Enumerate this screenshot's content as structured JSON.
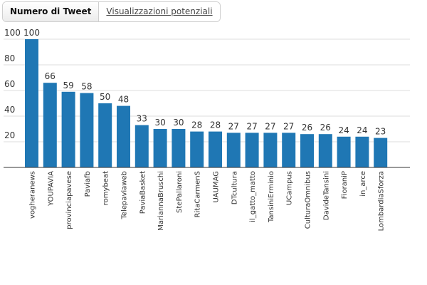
{
  "tabs": [
    {
      "label": "Numero di Tweet",
      "active": true
    },
    {
      "label": "Visualizzazioni potenziali",
      "active": false
    }
  ],
  "colors": {
    "bar": "#1f77b4",
    "grid": "#dddddd",
    "axis": "#333333"
  },
  "chart_data": {
    "type": "bar",
    "title": "",
    "xlabel": "",
    "ylabel": "",
    "ylim": [
      0,
      100
    ],
    "yticks": [
      20,
      40,
      60,
      80,
      100
    ],
    "grid": true,
    "categories": [
      "vogheranews",
      "YOUPAVIA",
      "provinciapavese",
      "Paviafb",
      "romybeat",
      "Telepaviaweb",
      "PaviaBasket",
      "MariannaBruschi",
      "StePallaroni",
      "RitaCarmenS",
      "UAUMAG",
      "DTcultura",
      "il_gatto_matto",
      "TansiniErminio",
      "UCampus",
      "CulturaOmnibus",
      "DavideTansini",
      "FioraniP",
      "in_arce",
      "LombardiaSforza"
    ],
    "values": [
      100,
      66,
      59,
      58,
      50,
      48,
      33,
      30,
      30,
      28,
      28,
      27,
      27,
      27,
      27,
      26,
      26,
      24,
      24,
      23
    ]
  }
}
